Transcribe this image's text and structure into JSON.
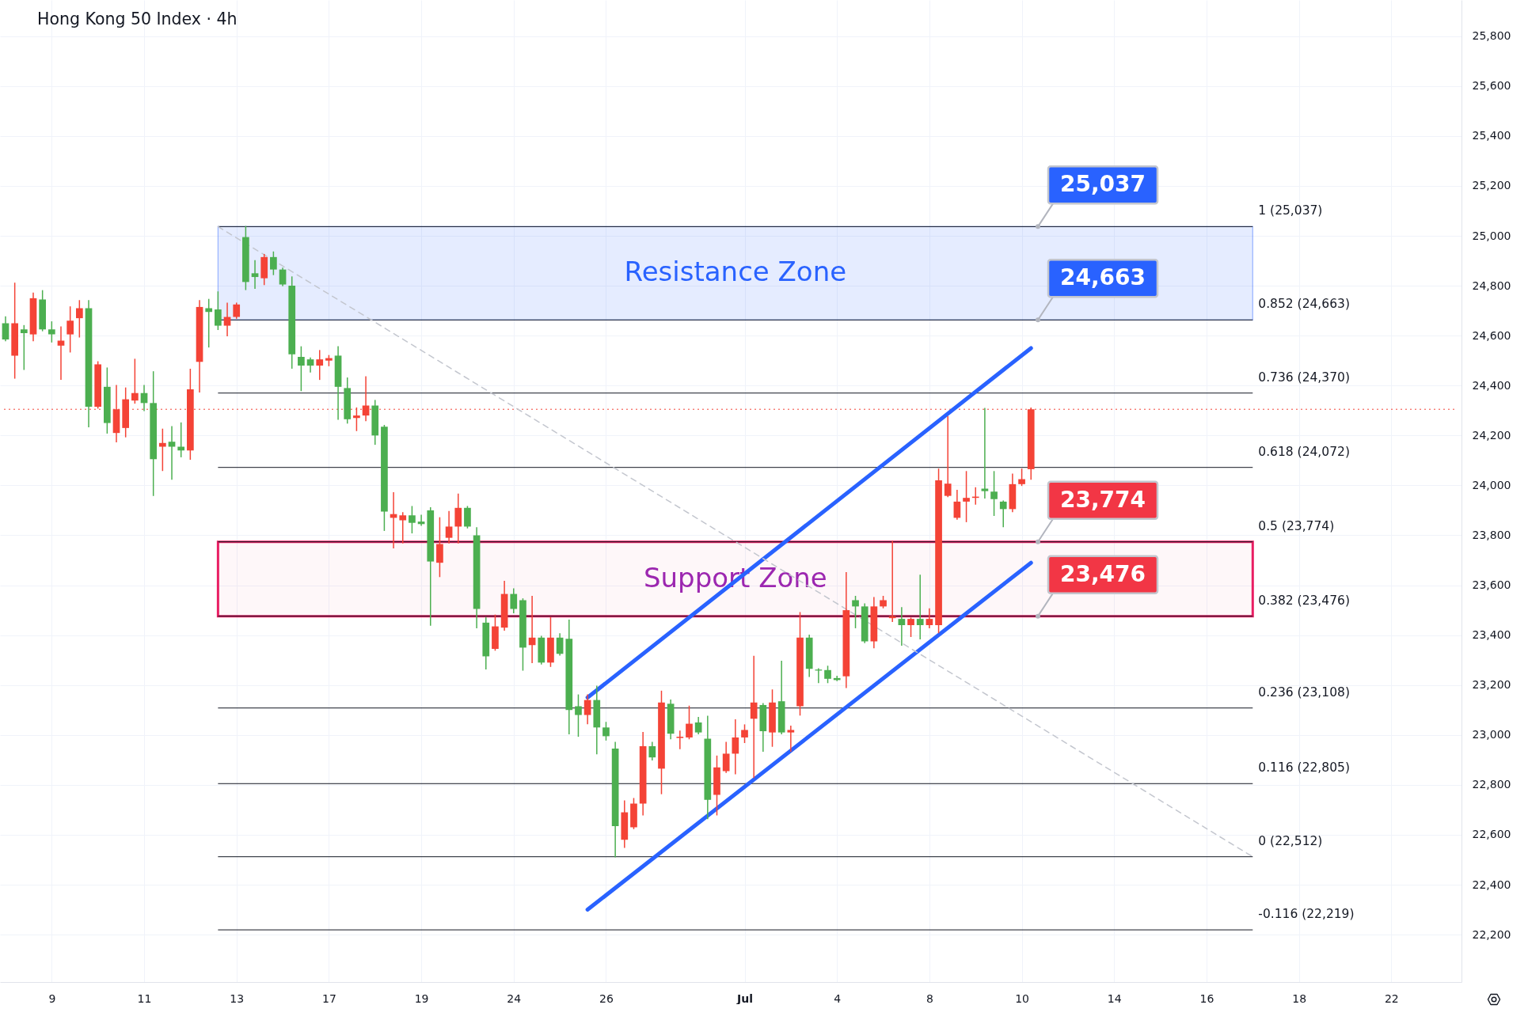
{
  "chart_data": {
    "type": "candlestick",
    "title": "Hong Kong 50 Index · 4h",
    "categories": [
      null,
      null,
      null,
      null,
      null,
      "9",
      null,
      null,
      null,
      null,
      null,
      null,
      null,
      null,
      null,
      "11",
      null,
      null,
      null,
      null,
      null,
      null,
      null,
      null,
      null,
      "13",
      null,
      null,
      null,
      null,
      null,
      null,
      null,
      null,
      null,
      "17",
      null,
      null,
      null,
      null,
      null,
      null,
      null,
      null,
      null,
      "19",
      null,
      null,
      null,
      null,
      null,
      null,
      null,
      null,
      null,
      "24",
      null,
      null,
      null,
      null,
      null,
      null,
      null,
      null,
      null,
      "26",
      null,
      null,
      null,
      null,
      null,
      null,
      null,
      null,
      null,
      null,
      null,
      null,
      null,
      null,
      "Jul",
      null,
      null,
      null,
      null,
      null,
      null,
      null,
      null,
      null,
      "4",
      null,
      null,
      null,
      null,
      null,
      null,
      null,
      null,
      null,
      "8",
      null,
      null,
      null,
      null,
      null,
      null,
      null,
      null,
      null,
      "10",
      null,
      null,
      null,
      null,
      null,
      null,
      null,
      null,
      null,
      "14",
      null,
      null,
      null,
      null,
      null,
      null,
      null,
      null,
      null,
      "16",
      null,
      null,
      null,
      null,
      null,
      null,
      null,
      null,
      null,
      "18",
      null,
      null,
      null,
      null,
      null,
      null,
      null,
      null,
      null,
      "22",
      null,
      null,
      null,
      null,
      null,
      null,
      null
    ],
    "ohlc": [
      [
        24650,
        24675,
        24580,
        24585
      ],
      [
        24520,
        24810,
        24430,
        24650
      ],
      [
        24625,
        24640,
        24465,
        24610
      ],
      [
        24605,
        24770,
        24580,
        24750
      ],
      [
        24745,
        24780,
        24620,
        24625
      ],
      [
        24625,
        24655,
        24575,
        24605
      ],
      [
        24560,
        24635,
        24425,
        24580
      ],
      [
        24605,
        24715,
        24535,
        24660
      ],
      [
        24670,
        24740,
        24595,
        24710
      ],
      [
        24710,
        24740,
        24235,
        24315
      ],
      [
        24315,
        24495,
        24310,
        24485
      ],
      [
        24395,
        24470,
        24210,
        24250
      ],
      [
        24210,
        24400,
        24175,
        24305
      ],
      [
        24230,
        24390,
        24195,
        24345
      ],
      [
        24340,
        24505,
        24330,
        24370
      ],
      [
        24370,
        24400,
        24300,
        24330
      ],
      [
        24330,
        24455,
        23960,
        24105
      ],
      [
        24155,
        24225,
        24060,
        24170
      ],
      [
        24175,
        24235,
        24025,
        24155
      ],
      [
        24155,
        24250,
        24115,
        24140
      ],
      [
        24140,
        24465,
        24105,
        24385
      ],
      [
        24495,
        24740,
        24375,
        24715
      ],
      [
        24710,
        24745,
        24555,
        24695
      ],
      [
        24705,
        24775,
        24625,
        24640
      ],
      [
        24640,
        24730,
        24600,
        24675
      ],
      [
        24675,
        24730,
        24670,
        24725
      ],
      [
        24995,
        25037,
        24785,
        24815
      ],
      [
        24850,
        24900,
        24790,
        24835
      ],
      [
        24830,
        24925,
        24805,
        24915
      ],
      [
        24915,
        24935,
        24845,
        24865
      ],
      [
        24865,
        24870,
        24800,
        24805
      ],
      [
        24800,
        24835,
        24470,
        24525
      ],
      [
        24515,
        24555,
        24380,
        24480
      ],
      [
        24505,
        24510,
        24455,
        24480
      ],
      [
        24480,
        24540,
        24425,
        24505
      ],
      [
        24500,
        24520,
        24480,
        24510
      ],
      [
        24520,
        24555,
        24265,
        24395
      ],
      [
        24390,
        24430,
        24250,
        24265
      ],
      [
        24270,
        24310,
        24220,
        24280
      ],
      [
        24280,
        24435,
        24260,
        24320
      ],
      [
        24320,
        24340,
        24165,
        24200
      ],
      [
        24235,
        24240,
        23820,
        23895
      ],
      [
        23870,
        23970,
        23750,
        23885
      ],
      [
        23860,
        23890,
        23770,
        23880
      ],
      [
        23880,
        23915,
        23810,
        23850
      ],
      [
        23855,
        23880,
        23840,
        23845
      ],
      [
        23900,
        23910,
        23440,
        23695
      ],
      [
        23690,
        23870,
        23635,
        23765
      ],
      [
        23790,
        23895,
        23770,
        23835
      ],
      [
        23835,
        23965,
        23770,
        23910
      ],
      [
        23910,
        23915,
        23830,
        23835
      ],
      [
        23800,
        23830,
        23430,
        23505
      ],
      [
        23450,
        23470,
        23265,
        23315
      ],
      [
        23345,
        23480,
        23340,
        23435
      ],
      [
        23430,
        23615,
        23420,
        23565
      ],
      [
        23565,
        23585,
        23490,
        23505
      ],
      [
        23540,
        23545,
        23260,
        23350
      ],
      [
        23360,
        23555,
        23290,
        23390
      ],
      [
        23390,
        23395,
        23285,
        23290
      ],
      [
        23290,
        23470,
        23275,
        23390
      ],
      [
        23390,
        23405,
        23320,
        23325
      ],
      [
        23385,
        23460,
        23005,
        23100
      ],
      [
        23115,
        23160,
        22995,
        23080
      ],
      [
        23080,
        23160,
        23045,
        23140
      ],
      [
        23140,
        23195,
        22925,
        23030
      ],
      [
        23030,
        23050,
        22980,
        22995
      ],
      [
        22945,
        22970,
        22512,
        22635
      ],
      [
        22580,
        22735,
        22550,
        22690
      ],
      [
        22630,
        22745,
        22625,
        22725
      ],
      [
        22725,
        23010,
        22680,
        22955
      ],
      [
        22955,
        22970,
        22900,
        22910
      ],
      [
        22865,
        23175,
        22765,
        23130
      ],
      [
        23125,
        23140,
        22985,
        23005
      ],
      [
        22988,
        23015,
        22945,
        22993
      ],
      [
        22990,
        23115,
        22985,
        23045
      ],
      [
        23050,
        23070,
        23005,
        23010
      ],
      [
        22985,
        23075,
        22665,
        22740
      ],
      [
        22760,
        22915,
        22680,
        22870
      ],
      [
        22855,
        22970,
        22850,
        22925
      ],
      [
        22925,
        23060,
        22845,
        22990
      ],
      [
        22990,
        23040,
        22970,
        23020
      ],
      [
        23065,
        23315,
        22830,
        23130
      ],
      [
        23120,
        23125,
        22935,
        23015
      ],
      [
        23010,
        23180,
        22955,
        23130
      ],
      [
        23135,
        23295,
        23005,
        23010
      ],
      [
        23010,
        23035,
        22935,
        23020
      ],
      [
        23115,
        23490,
        23080,
        23390
      ],
      [
        23390,
        23400,
        23235,
        23265
      ],
      [
        23262,
        23265,
        23210,
        23258
      ],
      [
        23260,
        23275,
        23210,
        23225
      ],
      [
        23228,
        23235,
        23218,
        23220
      ],
      [
        23235,
        23650,
        23190,
        23500
      ],
      [
        23540,
        23555,
        23430,
        23515
      ],
      [
        23515,
        23525,
        23370,
        23375
      ],
      [
        23375,
        23550,
        23350,
        23515
      ],
      [
        23515,
        23555,
        23510,
        23540
      ],
      [
        23468,
        23775,
        23455,
        23476
      ],
      [
        23465,
        23510,
        23360,
        23440
      ],
      [
        23440,
        23468,
        23395,
        23465
      ],
      [
        23465,
        23640,
        23385,
        23440
      ],
      [
        23440,
        23505,
        23430,
        23465
      ],
      [
        23440,
        24065,
        23410,
        24020
      ],
      [
        23958,
        24275,
        23955,
        24007
      ],
      [
        23870,
        23980,
        23865,
        23935
      ],
      [
        23935,
        24055,
        23855,
        23950
      ],
      [
        23950,
        23990,
        23925,
        23955
      ],
      [
        23987,
        24308,
        23950,
        23977
      ],
      [
        23975,
        24055,
        23880,
        23945
      ],
      [
        23935,
        23937,
        23835,
        23905
      ],
      [
        23905,
        24045,
        23895,
        24005
      ],
      [
        24005,
        24065,
        24000,
        24025
      ],
      [
        24065,
        24310,
        24025,
        24305
      ],
      null,
      null,
      null,
      null,
      null,
      null,
      null,
      null,
      null,
      null,
      null,
      null,
      null,
      null,
      null,
      null,
      null,
      null,
      null,
      null,
      null,
      null,
      null,
      null,
      null,
      null,
      null,
      null,
      null,
      null,
      null,
      null,
      null,
      null,
      null,
      null,
      null,
      null,
      null,
      null,
      null,
      null,
      null,
      null,
      null,
      null
    ],
    "colors": [
      "#4caf50",
      "#f44336",
      "#4caf50",
      "#f44336",
      "#4caf50",
      "#4caf50",
      "#f44336",
      "#f44336",
      "#f44336",
      "#4caf50",
      "#f44336",
      "#4caf50",
      "#f44336",
      "#f44336",
      "#f44336",
      "#4caf50",
      "#4caf50",
      "#f44336",
      "#4caf50",
      "#4caf50",
      "#f44336",
      "#f44336",
      "#4caf50",
      "#4caf50",
      "#f44336",
      "#f44336",
      "#4caf50",
      "#4caf50",
      "#f44336",
      "#4caf50",
      "#4caf50",
      "#4caf50",
      "#4caf50",
      "#4caf50",
      "#f44336",
      "#f44336",
      "#4caf50",
      "#4caf50",
      "#f44336",
      "#f44336",
      "#4caf50",
      "#4caf50",
      "#f44336",
      "#f44336",
      "#4caf50",
      "#4caf50",
      "#4caf50",
      "#f44336",
      "#f44336",
      "#f44336",
      "#4caf50",
      "#4caf50",
      "#4caf50",
      "#f44336",
      "#f44336",
      "#4caf50",
      "#4caf50",
      "#f44336",
      "#4caf50",
      "#f44336",
      "#4caf50",
      "#4caf50",
      "#4caf50",
      "#f44336",
      "#4caf50",
      "#4caf50",
      "#4caf50",
      "#f44336",
      "#f44336",
      "#f44336",
      "#4caf50",
      "#f44336",
      "#4caf50",
      "#f44336",
      "#f44336",
      "#4caf50",
      "#4caf50",
      "#f44336",
      "#f44336",
      "#f44336",
      "#f44336",
      "#f44336",
      "#4caf50",
      "#f44336",
      "#4caf50",
      "#f44336",
      "#f44336",
      "#4caf50",
      "#4caf50",
      "#4caf50",
      "#4caf50",
      "#f44336",
      "#4caf50",
      "#4caf50",
      "#f44336",
      "#f44336",
      "#f44336",
      "#4caf50",
      "#f44336",
      "#4caf50",
      "#f44336",
      "#f44336",
      "#f44336",
      "#f44336",
      "#f44336",
      "#f44336",
      "#4caf50",
      "#4caf50",
      "#4caf50",
      "#f44336",
      "#f44336",
      "#f44336",
      null,
      null,
      null,
      null,
      null,
      null,
      null,
      null,
      null,
      null,
      null,
      null,
      null,
      null,
      null,
      null,
      null,
      null,
      null,
      null,
      null,
      null,
      null,
      null,
      null,
      null,
      null,
      null,
      null,
      null,
      null,
      null,
      null,
      null,
      null,
      null,
      null,
      null,
      null,
      null,
      null,
      null,
      null,
      null,
      null,
      null
    ],
    "series": [
      {
        "type": "line",
        "color": "#2962ff",
        "values": [
          null,
          null,
          null,
          null,
          null,
          null,
          null,
          null,
          null,
          null,
          null,
          null,
          null,
          null,
          null,
          null,
          null,
          null,
          null,
          null,
          null,
          null,
          null,
          null,
          null,
          null,
          null,
          null,
          null,
          null,
          null,
          null,
          null,
          null,
          null,
          null,
          null,
          null,
          null,
          null,
          null,
          null,
          null,
          null,
          null,
          null,
          null,
          null,
          null,
          null,
          null,
          null,
          null,
          null,
          null,
          null,
          null,
          null,
          null,
          null,
          null,
          null,
          null,
          23150,
          null,
          null,
          null,
          null,
          null,
          null,
          null,
          null,
          null,
          null,
          null,
          null,
          null,
          null,
          null,
          null,
          null,
          null,
          null,
          null,
          null,
          null,
          null,
          null,
          null,
          null,
          null,
          null,
          null,
          null,
          null,
          null,
          null,
          null,
          null,
          null,
          null,
          null,
          null,
          null,
          null,
          null,
          null,
          null,
          null,
          null,
          null,
          24550,
          null,
          null,
          null,
          null,
          null,
          null,
          null,
          null,
          null,
          null,
          null,
          null,
          null,
          null,
          null,
          null,
          null,
          null,
          null,
          null,
          null,
          null,
          null,
          null,
          null,
          null,
          null,
          null,
          null,
          null,
          null,
          null,
          null,
          null,
          null,
          null,
          null,
          null,
          null,
          null,
          null,
          null,
          null,
          null,
          null,
          null
        ]
      },
      {
        "type": "line",
        "color": "#2962ff",
        "values": [
          null,
          null,
          null,
          null,
          null,
          null,
          null,
          null,
          null,
          null,
          null,
          null,
          null,
          null,
          null,
          null,
          null,
          null,
          null,
          null,
          null,
          null,
          null,
          null,
          null,
          null,
          null,
          null,
          null,
          null,
          null,
          null,
          null,
          null,
          null,
          null,
          null,
          null,
          null,
          null,
          null,
          null,
          null,
          null,
          null,
          null,
          null,
          null,
          null,
          null,
          null,
          null,
          null,
          null,
          null,
          null,
          null,
          null,
          null,
          null,
          null,
          null,
          null,
          22300,
          null,
          null,
          null,
          null,
          null,
          null,
          null,
          null,
          null,
          null,
          null,
          null,
          null,
          null,
          null,
          null,
          null,
          null,
          null,
          null,
          null,
          null,
          null,
          null,
          null,
          null,
          null,
          null,
          null,
          null,
          null,
          null,
          null,
          null,
          null,
          null,
          null,
          null,
          null,
          null,
          null,
          null,
          null,
          null,
          null,
          null,
          null,
          23690,
          null,
          null,
          null,
          null,
          null,
          null,
          null,
          null,
          null,
          null,
          null,
          null,
          null,
          null,
          null,
          null,
          null,
          null,
          null,
          null,
          null,
          null,
          null,
          null,
          null,
          null,
          null,
          null,
          null,
          null,
          null,
          null,
          null,
          null,
          null,
          null,
          null,
          null,
          null,
          null,
          null,
          null,
          null,
          null,
          null,
          null
        ]
      },
      {
        "type": "line",
        "color": "#c3c6ce",
        "line_style": "dashed",
        "values": [
          null,
          null,
          null,
          null,
          null,
          null,
          null,
          null,
          null,
          null,
          null,
          null,
          null,
          null,
          null,
          null,
          null,
          null,
          null,
          null,
          null,
          null,
          null,
          25037,
          null,
          null,
          null,
          null,
          null,
          null,
          null,
          null,
          null,
          null,
          null,
          null,
          null,
          null,
          null,
          null,
          null,
          null,
          null,
          null,
          null,
          null,
          null,
          null,
          null,
          null,
          null,
          null,
          null,
          null,
          null,
          null,
          null,
          null,
          null,
          null,
          null,
          null,
          null,
          null,
          null,
          null,
          null,
          null,
          null,
          null,
          null,
          null,
          null,
          null,
          null,
          null,
          null,
          null,
          null,
          null,
          null,
          null,
          null,
          null,
          null,
          null,
          null,
          null,
          null,
          null,
          null,
          null,
          null,
          null,
          null,
          null,
          null,
          null,
          null,
          null,
          null,
          null,
          null,
          null,
          null,
          null,
          null,
          null,
          null,
          null,
          null,
          null,
          null,
          null,
          null,
          null,
          null,
          null,
          null,
          null,
          null,
          null,
          null,
          null,
          null,
          null,
          null,
          null,
          null,
          null,
          null,
          null,
          null,
          null,
          null,
          22512,
          null,
          null,
          null,
          null,
          null,
          null,
          null,
          null,
          null,
          null,
          null,
          null,
          null,
          null,
          null,
          null,
          null,
          null,
          null,
          null,
          null,
          null
        ]
      }
    ],
    "ylim": [
      22010,
      25945
    ],
    "yticks": [
      {
        "value": 22200,
        "label": "22,200"
      },
      {
        "value": 22400,
        "label": "22,400"
      },
      {
        "value": 22600,
        "label": "22,600"
      },
      {
        "value": 22800,
        "label": "22,800"
      },
      {
        "value": 23000,
        "label": "23,000"
      },
      {
        "value": 23200,
        "label": "23,200"
      },
      {
        "value": 23400,
        "label": "23,400"
      },
      {
        "value": 23600,
        "label": "23,600"
      },
      {
        "value": 23800,
        "label": "23,800"
      },
      {
        "value": 24000,
        "label": "24,000"
      },
      {
        "value": 24200,
        "label": "24,200"
      },
      {
        "value": 24400,
        "label": "24,400"
      },
      {
        "value": 24600,
        "label": "24,600"
      },
      {
        "value": 24800,
        "label": "24,800"
      },
      {
        "value": 25000,
        "label": "25,000"
      },
      {
        "value": 25200,
        "label": "25,200"
      },
      {
        "value": 25400,
        "label": "25,400"
      },
      {
        "value": 25600,
        "label": "25,600"
      },
      {
        "value": 25800,
        "label": "25,800"
      }
    ],
    "grid": true,
    "bands": [
      {
        "axis": "y",
        "from": 24663,
        "to": 25037,
        "label": "Resistance Zone",
        "color": "#2962ff"
      },
      {
        "axis": "y",
        "from": 23476,
        "to": 23774,
        "label": "Support Zone",
        "color": "#e91e63"
      }
    ],
    "ref_lines": [
      {
        "axis": "y",
        "value": 25037,
        "label": "1 (25,037)"
      },
      {
        "axis": "y",
        "value": 24663,
        "label": "0.852 (24,663)"
      },
      {
        "axis": "y",
        "value": 24370,
        "label": "0.736 (24,370)"
      },
      {
        "axis": "y",
        "value": 24072,
        "label": "0.618 (24,072)"
      },
      {
        "axis": "y",
        "value": 23774,
        "label": "0.5 (23,774)"
      },
      {
        "axis": "y",
        "value": 23476,
        "label": "0.382 (23,476)"
      },
      {
        "axis": "y",
        "value": 23108,
        "label": "0.236 (23,108)"
      },
      {
        "axis": "y",
        "value": 22805,
        "label": "0.116 (22,805)"
      },
      {
        "axis": "y",
        "value": 22512,
        "label": "0 (22,512)"
      },
      {
        "axis": "y",
        "value": 22219,
        "label": "-0.116 (22,219)"
      },
      {
        "axis": "y",
        "value": 24305,
        "color": "#f44336",
        "line_style": "dotted"
      }
    ],
    "annotations": [
      {
        "text": "25,037",
        "y": 25037
      },
      {
        "text": "24,663",
        "y": 24663
      },
      {
        "text": "23,774",
        "y": 23774
      },
      {
        "text": "23,476",
        "y": 23476
      }
    ]
  }
}
